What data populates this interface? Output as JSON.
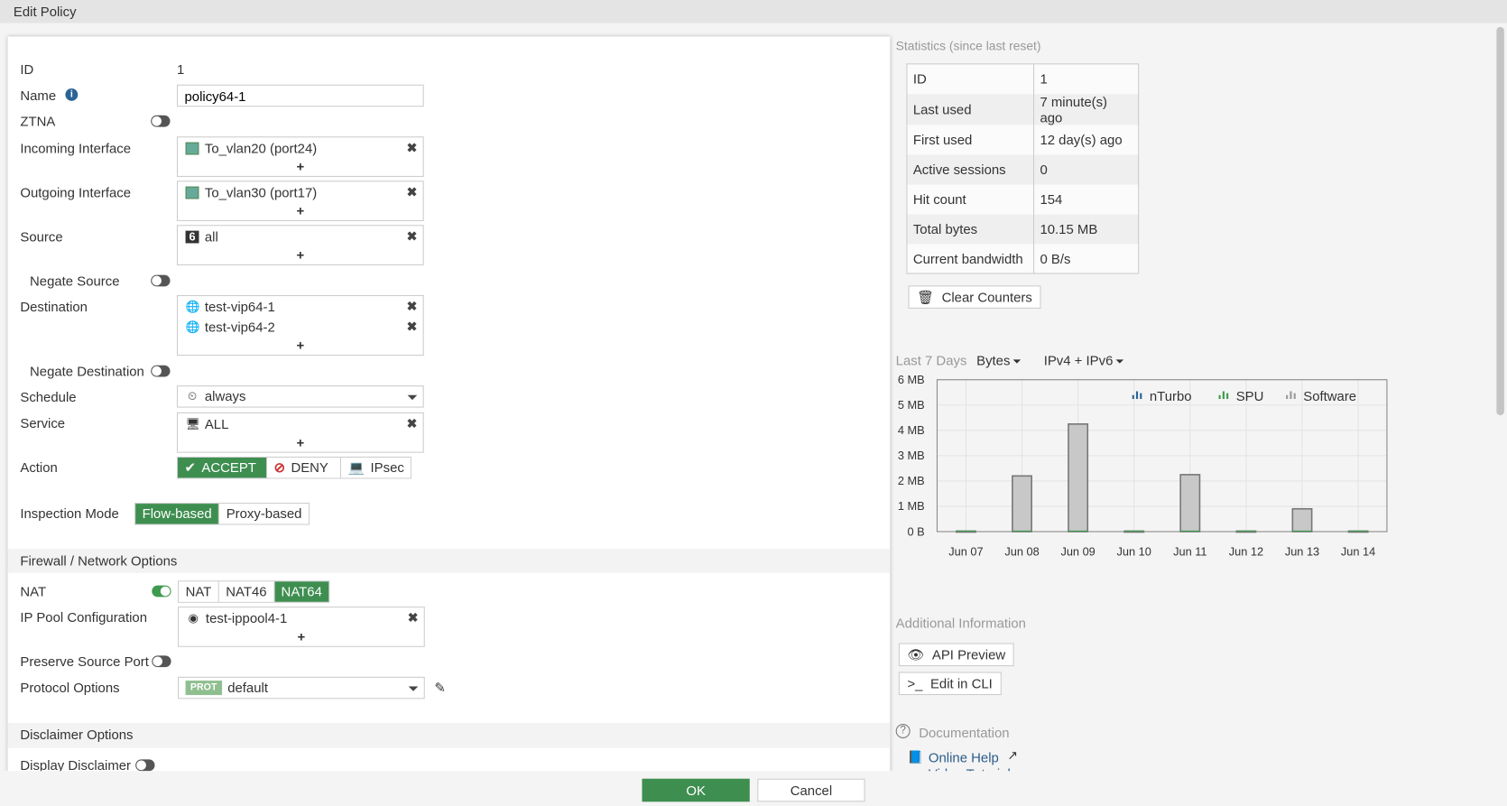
{
  "window": {
    "title": "Edit Policy"
  },
  "form": {
    "id_label": "ID",
    "id_value": "1",
    "name_label": "Name",
    "name_value": "policy64-1",
    "ztna_label": "ZTNA",
    "ztna_on": false,
    "incoming_label": "Incoming Interface",
    "incoming": [
      "To_vlan20 (port24)"
    ],
    "outgoing_label": "Outgoing Interface",
    "outgoing": [
      "To_vlan30 (port17)"
    ],
    "source_label": "Source",
    "source": [
      "all"
    ],
    "negate_source_label": "Negate Source",
    "destination_label": "Destination",
    "destination": [
      "test-vip64-1",
      "test-vip64-2"
    ],
    "negate_destination_label": "Negate Destination",
    "schedule_label": "Schedule",
    "schedule_value": "always",
    "service_label": "Service",
    "service": [
      "ALL"
    ],
    "action_label": "Action",
    "actions": [
      "ACCEPT",
      "DENY",
      "IPsec"
    ],
    "action_selected": "ACCEPT",
    "inspection_label": "Inspection Mode",
    "inspection_modes": [
      "Flow-based",
      "Proxy-based"
    ],
    "inspection_selected": "Flow-based",
    "add_symbol": "+",
    "remove_symbol": "✖"
  },
  "firewall": {
    "section_title": "Firewall / Network Options",
    "nat_label": "NAT",
    "nat_on": true,
    "nat_modes": [
      "NAT",
      "NAT46",
      "NAT64"
    ],
    "nat_selected": "NAT64",
    "ippool_label": "IP Pool Configuration",
    "ippool": [
      "test-ippool4-1"
    ],
    "preserve_label": "Preserve Source Port",
    "protocol_label": "Protocol Options",
    "protocol_badge": "PROT",
    "protocol_value": "default"
  },
  "disclaimer": {
    "section_title": "Disclaimer Options",
    "display_label": "Display Disclaimer"
  },
  "statistics": {
    "title": "Statistics (since last reset)",
    "rows": [
      [
        "ID",
        "1"
      ],
      [
        "Last used",
        "7 minute(s) ago"
      ],
      [
        "First used",
        "12 day(s) ago"
      ],
      [
        "Active sessions",
        "0"
      ],
      [
        "Hit count",
        "154"
      ],
      [
        "Total bytes",
        "10.15 MB"
      ],
      [
        "Current bandwidth",
        "0 B/s"
      ]
    ],
    "clear_label": "Clear Counters"
  },
  "chart_controls": {
    "period": "Last 7 Days",
    "metric": "Bytes",
    "ip_version": "IPv4 + IPv6"
  },
  "chart_data": {
    "type": "bar",
    "categories": [
      "Jun 07",
      "Jun 08",
      "Jun 09",
      "Jun 10",
      "Jun 11",
      "Jun 12",
      "Jun 13",
      "Jun 14"
    ],
    "series": [
      {
        "name": "nTurbo",
        "color": "#2a6496",
        "values": [
          0,
          0,
          0,
          0,
          0,
          0,
          0,
          0
        ]
      },
      {
        "name": "SPU",
        "color": "#3e9a4e",
        "values": [
          0,
          0,
          0,
          0,
          0,
          0,
          0,
          0
        ]
      },
      {
        "name": "Software",
        "color": "#c8c8c8",
        "values": [
          0.02,
          2.2,
          4.25,
          0.02,
          2.25,
          0.02,
          0.9,
          0.02
        ]
      }
    ],
    "yticks": [
      "0 B",
      "1 MB",
      "2 MB",
      "3 MB",
      "4 MB",
      "5 MB",
      "6 MB"
    ],
    "ylim": [
      0,
      6
    ],
    "yunit": "MB",
    "grid": true,
    "legend": "top-right"
  },
  "additional": {
    "title": "Additional Information",
    "api_preview": "API Preview",
    "edit_cli": "Edit in CLI"
  },
  "documentation": {
    "title": "Documentation",
    "links": [
      "Online Help",
      "Video Tutorials"
    ]
  },
  "footer": {
    "ok": "OK",
    "cancel": "Cancel"
  },
  "colors": {
    "accent": "#3e8e50",
    "link": "#2a5c8a"
  }
}
